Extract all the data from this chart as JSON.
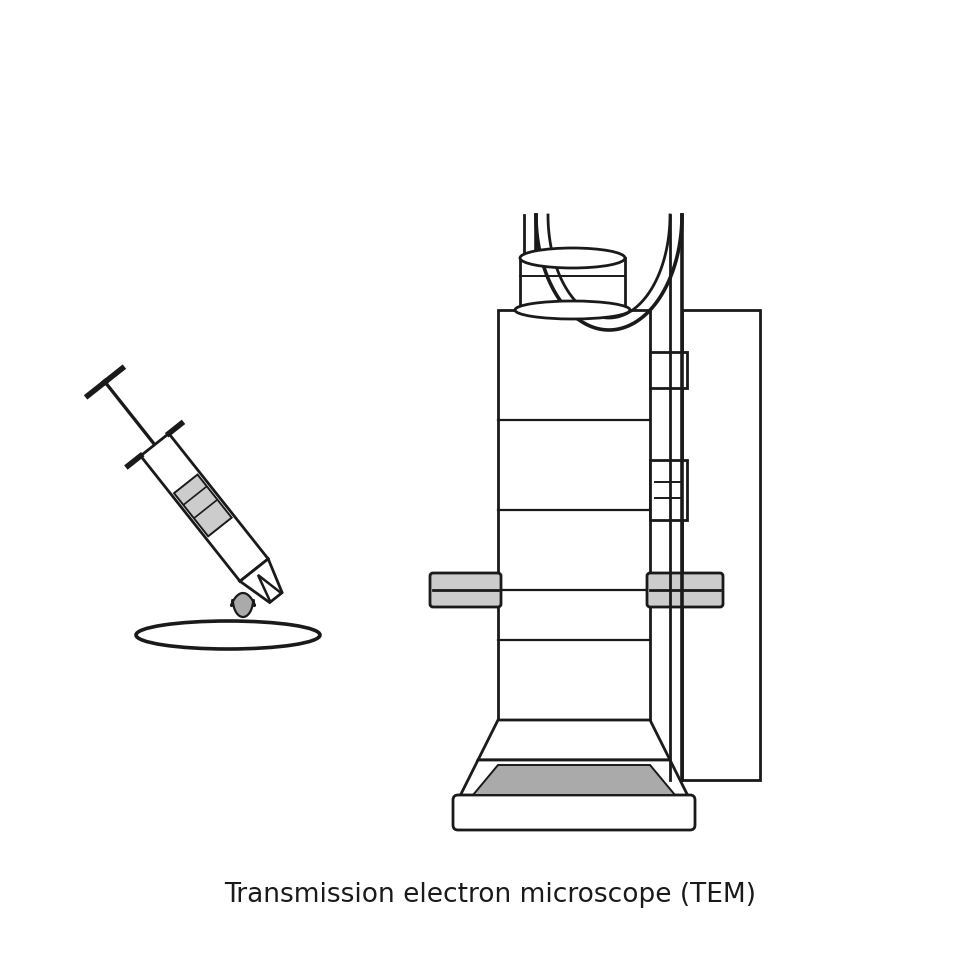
{
  "title": "Transmission electron microscope (TEM)",
  "title_fontsize": 19,
  "title_color": "#1a1a1a",
  "background_color": "#ffffff",
  "outline_color": "#1a1a1a",
  "gray_fill": "#aaaaaa",
  "light_gray_fill": "#cccccc",
  "lw": 2.0
}
